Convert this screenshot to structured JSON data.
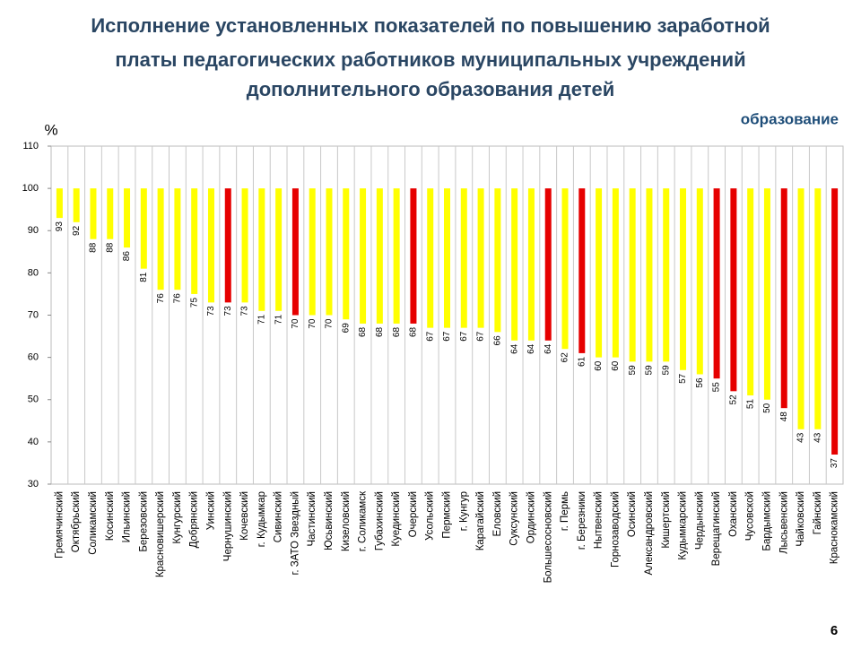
{
  "chart_data": {
    "type": "bar",
    "title": [
      "Исполнение установленных показателей по повышению заработной",
      "платы педагогических работников муниципальных учреждений",
      "дополнительного образования детей"
    ],
    "subtitle": "образование",
    "y_label": "%",
    "page_number": "6",
    "categories": [
      "Гремячинский",
      "Октябрьский",
      "Соликамский",
      "Косинский",
      "Ильинский",
      "Березовский",
      "Красновишерский",
      "Кунгурский",
      "Добрянский",
      "Уинский",
      "Чернушинский",
      "Кочевский",
      "г. Кудымкар",
      "Сивинский",
      "г. ЗАТО Звездный",
      "Частинский",
      "Юсьвинский",
      "Кизеловский",
      "г. Соликамск",
      "Губахинский",
      "Куединский",
      "Очерский",
      "Усольский",
      "Пермский",
      "г. Кунгур",
      "Карагайский",
      "Еловский",
      "Суксунский",
      "Ординский",
      "Большесосновский",
      "г. Пермь",
      "г. Березники",
      "Нытвенский",
      "Горнозаводский",
      "Осинский",
      "Александровский",
      "Кишертский",
      "Кудымкарский",
      "Чердынский",
      "Верещагинский",
      "Оханский",
      "Чусовской",
      "Бардымский",
      "Лысьвенский",
      "Чайковский",
      "Гайнский",
      "Краснокамский"
    ],
    "values": [
      93,
      92,
      88,
      88,
      86,
      81,
      76,
      76,
      75,
      73,
      73,
      73,
      71,
      71,
      70,
      70,
      70,
      69,
      68,
      68,
      68,
      68,
      67,
      67,
      67,
      67,
      66,
      64,
      64,
      64,
      62,
      61,
      60,
      60,
      59,
      59,
      59,
      57,
      56,
      55,
      52,
      51,
      50,
      48,
      43,
      43,
      37
    ],
    "colors": [
      "#ffff00",
      "#ffff00",
      "#ffff00",
      "#ffff00",
      "#ffff00",
      "#ffff00",
      "#ffff00",
      "#ffff00",
      "#ffff00",
      "#ffff00",
      "#e60000",
      "#ffff00",
      "#ffff00",
      "#ffff00",
      "#e60000",
      "#ffff00",
      "#ffff00",
      "#ffff00",
      "#ffff00",
      "#ffff00",
      "#ffff00",
      "#e60000",
      "#ffff00",
      "#ffff00",
      "#ffff00",
      "#ffff00",
      "#ffff00",
      "#ffff00",
      "#ffff00",
      "#e60000",
      "#ffff00",
      "#e60000",
      "#ffff00",
      "#ffff00",
      "#ffff00",
      "#ffff00",
      "#ffff00",
      "#ffff00",
      "#ffff00",
      "#e60000",
      "#e60000",
      "#ffff00",
      "#ffff00",
      "#e60000",
      "#ffff00",
      "#ffff00",
      "#e60000"
    ],
    "baseline": 100,
    "ylim": [
      30,
      110
    ],
    "yticks": [
      30,
      40,
      50,
      60,
      70,
      80,
      90,
      100,
      110
    ]
  }
}
